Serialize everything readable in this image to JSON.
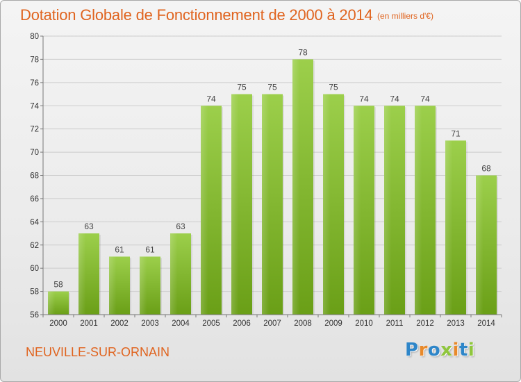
{
  "header": {
    "title": "Dotation Globale de Fonctionnement de 2000 à 2014",
    "subtitle": "(en milliers d'€)"
  },
  "footer": {
    "commune": "NEUVILLE-SUR-ORNAIN",
    "logo_letters": [
      "P",
      "r",
      "o",
      "x",
      "i",
      "t",
      "i"
    ]
  },
  "colors": {
    "title": "#e0641f",
    "bar_top": "#9ccf4b",
    "bar_bottom": "#6a9f17",
    "grid": "#cccccc"
  },
  "chart_data": {
    "type": "bar",
    "title": "Dotation Globale de Fonctionnement de 2000 à 2014",
    "subtitle": "(en milliers d'€)",
    "xlabel": "",
    "ylabel": "",
    "categories": [
      "2000",
      "2001",
      "2002",
      "2003",
      "2004",
      "2005",
      "2006",
      "2007",
      "2008",
      "2009",
      "2010",
      "2011",
      "2012",
      "2013",
      "2014"
    ],
    "values": [
      58,
      63,
      61,
      61,
      63,
      74,
      75,
      75,
      78,
      75,
      74,
      74,
      74,
      71,
      68
    ],
    "ylim": [
      56,
      80
    ],
    "yticks": [
      56,
      58,
      60,
      62,
      64,
      66,
      68,
      70,
      72,
      74,
      76,
      78,
      80
    ],
    "grid": true,
    "legend": "none"
  }
}
